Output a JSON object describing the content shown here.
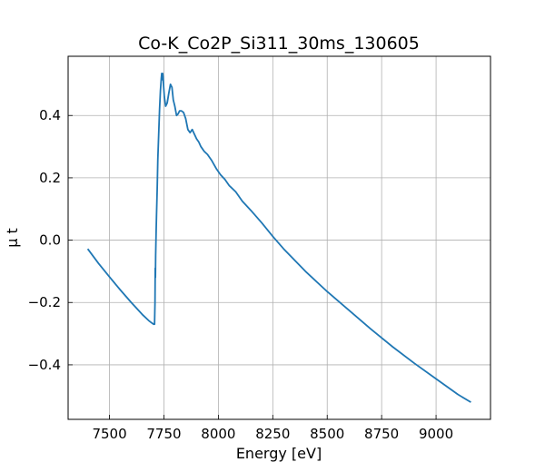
{
  "chart_data": {
    "type": "line",
    "title": "Co-K_Co2P_Si311_30ms_130605",
    "xlabel": "Energy [eV]",
    "ylabel": "μ t",
    "xlim": [
      7310,
      9250
    ],
    "ylim": [
      -0.575,
      0.59
    ],
    "grid": true,
    "xticks": [
      7500,
      7750,
      8000,
      8250,
      8500,
      8750,
      9000
    ],
    "xtick_labels": [
      "7500",
      "7750",
      "8000",
      "8250",
      "8500",
      "8750",
      "9000"
    ],
    "yticks": [
      -0.4,
      -0.2,
      0.0,
      0.2,
      0.4
    ],
    "ytick_labels": [
      "−0.4",
      "−0.2",
      "0.0",
      "0.2",
      "0.4"
    ],
    "color": "#1f77b4",
    "series": [
      {
        "x": [
          7400,
          7450,
          7500,
          7550,
          7600,
          7650,
          7680,
          7695,
          7703,
          7707,
          7709,
          7710,
          7711,
          7712,
          7714,
          7716,
          7719,
          7722,
          7726,
          7730,
          7734,
          7738,
          7740,
          7742,
          7744,
          7746,
          7748,
          7752,
          7758,
          7765,
          7772,
          7780,
          7787,
          7793,
          7800,
          7808,
          7815,
          7822,
          7830,
          7840,
          7850,
          7860,
          7870,
          7880,
          7890,
          7900,
          7910,
          7920,
          7935,
          7950,
          7970,
          7990,
          8010,
          8030,
          8050,
          8080,
          8110,
          8150,
          8200,
          8250,
          8300,
          8400,
          8500,
          8600,
          8700,
          8800,
          8900,
          9000,
          9100,
          9160
        ],
        "y": [
          -0.028,
          -0.075,
          -0.118,
          -0.16,
          -0.2,
          -0.238,
          -0.258,
          -0.266,
          -0.27,
          -0.27,
          -0.2,
          -0.09,
          -0.12,
          -0.05,
          0.02,
          0.08,
          0.16,
          0.26,
          0.34,
          0.42,
          0.48,
          0.52,
          0.535,
          0.515,
          0.535,
          0.525,
          0.5,
          0.46,
          0.43,
          0.44,
          0.47,
          0.5,
          0.49,
          0.45,
          0.43,
          0.4,
          0.405,
          0.415,
          0.415,
          0.41,
          0.39,
          0.355,
          0.345,
          0.355,
          0.34,
          0.325,
          0.315,
          0.3,
          0.285,
          0.275,
          0.255,
          0.23,
          0.21,
          0.195,
          0.175,
          0.155,
          0.125,
          0.095,
          0.055,
          0.012,
          -0.028,
          -0.1,
          -0.165,
          -0.225,
          -0.285,
          -0.342,
          -0.395,
          -0.445,
          -0.495,
          -0.52
        ]
      }
    ]
  }
}
